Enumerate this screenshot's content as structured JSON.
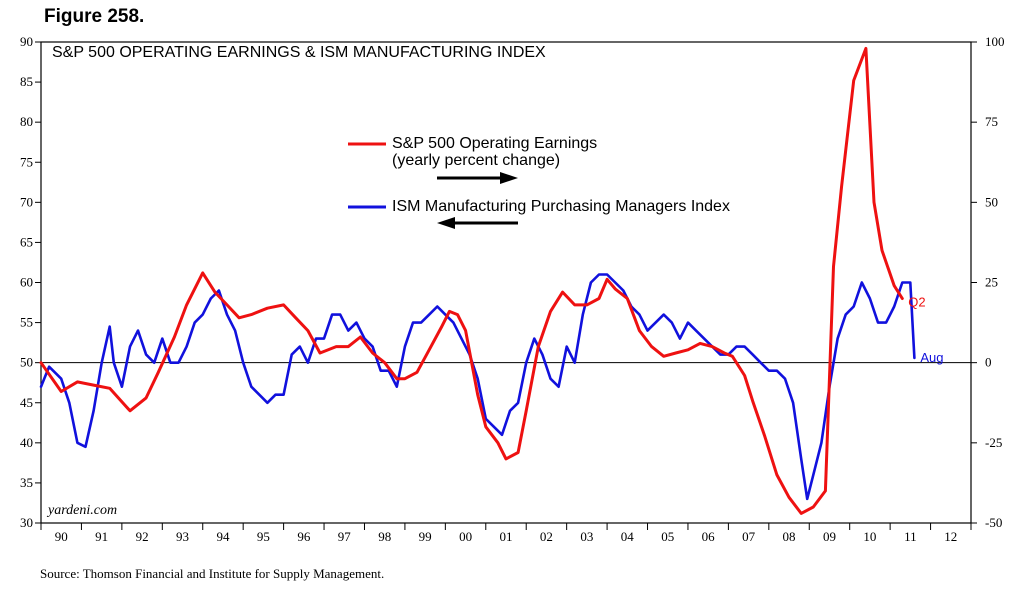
{
  "figure_label": "Figure 258.",
  "source": "Source: Thomson Financial and Institute for Supply Management.",
  "watermark": "yardeni.com",
  "colors": {
    "earnings": "#ee1111",
    "ism": "#1111dd",
    "zero_line": "#000000"
  },
  "chart_data": {
    "type": "line",
    "title": "S&P 500 OPERATING EARNINGS & ISM MANUFACTURING INDEX",
    "x_tick_labels": [
      "90",
      "91",
      "92",
      "93",
      "94",
      "95",
      "96",
      "97",
      "98",
      "99",
      "00",
      "01",
      "02",
      "03",
      "04",
      "05",
      "06",
      "07",
      "08",
      "09",
      "10",
      "11",
      "12"
    ],
    "x_range": [
      1990.0,
      2013.0
    ],
    "left_axis": {
      "range": [
        30,
        90
      ],
      "ticks": [
        30,
        35,
        40,
        45,
        50,
        55,
        60,
        65,
        70,
        75,
        80,
        85,
        90
      ]
    },
    "right_axis": {
      "range": [
        -50,
        100
      ],
      "ticks": [
        -50,
        -25,
        0,
        25,
        50,
        75,
        100
      ]
    },
    "reference_line": {
      "axis": "left",
      "value": 50
    },
    "legend": [
      {
        "label_line1": "S&P 500 Operating Earnings",
        "label_line2": "(yearly percent change)",
        "arrow": "right"
      },
      {
        "label_line1": "ISM Manufacturing Purchasing Managers Index",
        "label_line2": "",
        "arrow": "left"
      }
    ],
    "series": [
      {
        "name": "S&P 500 Operating Earnings",
        "axis": "right",
        "end_label": "Q2",
        "x": [
          1990.0,
          1990.5,
          1990.9,
          1991.3,
          1991.7,
          1992.2,
          1992.6,
          1992.9,
          1993.3,
          1993.6,
          1994.0,
          1994.3,
          1994.6,
          1994.9,
          1995.2,
          1995.6,
          1996.0,
          1996.3,
          1996.6,
          1996.9,
          1997.3,
          1997.6,
          1997.9,
          1998.2,
          1998.5,
          1998.8,
          1999.0,
          1999.3,
          1999.6,
          1999.9,
          2000.1,
          2000.3,
          2000.5,
          2000.8,
          2001.0,
          2001.3,
          2001.5,
          2001.8,
          2002.0,
          2002.3,
          2002.6,
          2002.9,
          2003.2,
          2003.5,
          2003.8,
          2004.0,
          2004.2,
          2004.5,
          2004.8,
          2005.1,
          2005.4,
          2005.7,
          2006.0,
          2006.3,
          2006.6,
          2006.9,
          2007.1,
          2007.4,
          2007.6,
          2007.9,
          2008.2,
          2008.5,
          2008.8,
          2009.1,
          2009.4,
          2009.6,
          2009.8,
          2010.1,
          2010.4,
          2010.6,
          2010.8,
          2011.1,
          2011.3
        ],
        "y": [
          0,
          -9,
          -6,
          -7,
          -8,
          -15,
          -11,
          -3,
          8,
          18,
          28,
          22,
          18,
          14,
          15,
          17,
          18,
          14,
          10,
          3,
          5,
          5,
          8,
          3,
          0,
          -5,
          -5,
          -3,
          4,
          11,
          16,
          15,
          10,
          -10,
          -20,
          -25,
          -30,
          -28,
          -15,
          5,
          16,
          22,
          18,
          18,
          20,
          26,
          23,
          20,
          10,
          5,
          2,
          3,
          4,
          6,
          5,
          3,
          2,
          -4,
          -12,
          -23,
          -35,
          -42,
          -47,
          -45,
          -40,
          30,
          55,
          88,
          98,
          50,
          35,
          24,
          20
        ]
      },
      {
        "name": "ISM Manufacturing Purchasing Managers Index",
        "axis": "left",
        "end_label": "Aug",
        "x": [
          1990.0,
          1990.2,
          1990.5,
          1990.7,
          1990.9,
          1991.1,
          1991.3,
          1991.5,
          1991.7,
          1991.8,
          1992.0,
          1992.2,
          1992.4,
          1992.6,
          1992.8,
          1993.0,
          1993.2,
          1993.4,
          1993.6,
          1993.8,
          1994.0,
          1994.2,
          1994.4,
          1994.6,
          1994.8,
          1995.0,
          1995.2,
          1995.4,
          1995.6,
          1995.8,
          1996.0,
          1996.2,
          1996.4,
          1996.6,
          1996.8,
          1997.0,
          1997.2,
          1997.4,
          1997.6,
          1997.8,
          1998.0,
          1998.2,
          1998.4,
          1998.6,
          1998.8,
          1999.0,
          1999.2,
          1999.4,
          1999.6,
          1999.8,
          2000.0,
          2000.2,
          2000.4,
          2000.6,
          2000.8,
          2001.0,
          2001.2,
          2001.4,
          2001.6,
          2001.8,
          2002.0,
          2002.2,
          2002.4,
          2002.6,
          2002.8,
          2003.0,
          2003.2,
          2003.4,
          2003.6,
          2003.8,
          2004.0,
          2004.2,
          2004.4,
          2004.6,
          2004.8,
          2005.0,
          2005.2,
          2005.4,
          2005.6,
          2005.8,
          2006.0,
          2006.2,
          2006.4,
          2006.6,
          2006.8,
          2007.0,
          2007.2,
          2007.4,
          2007.6,
          2007.8,
          2008.0,
          2008.2,
          2008.4,
          2008.6,
          2008.8,
          2008.95,
          2009.1,
          2009.3,
          2009.5,
          2009.7,
          2009.9,
          2010.1,
          2010.3,
          2010.5,
          2010.7,
          2010.9,
          2011.1,
          2011.3,
          2011.5,
          2011.6
        ],
        "y": [
          47,
          49.5,
          48,
          45,
          40,
          39.5,
          44,
          50,
          54.5,
          50,
          47,
          52,
          54,
          51,
          50,
          53,
          50,
          50,
          52,
          55,
          56,
          58,
          59,
          56,
          54,
          50,
          47,
          46,
          45,
          46,
          46,
          51,
          52,
          50,
          53,
          53,
          56,
          56,
          54,
          55,
          53,
          52,
          49,
          49,
          47,
          52,
          55,
          55,
          56,
          57,
          56,
          55,
          53,
          51,
          48,
          43,
          42,
          41,
          44,
          45,
          50,
          53,
          51,
          48,
          47,
          52,
          50,
          56,
          60,
          61,
          61,
          60,
          59,
          57,
          56,
          54,
          55,
          56,
          55,
          53,
          55,
          54,
          53,
          52,
          51,
          51,
          52,
          52,
          51,
          50,
          49,
          49,
          48,
          45,
          38,
          33,
          36,
          40,
          47,
          53,
          56,
          57,
          60,
          58,
          55,
          55,
          57,
          60,
          60,
          50.6
        ]
      }
    ]
  }
}
